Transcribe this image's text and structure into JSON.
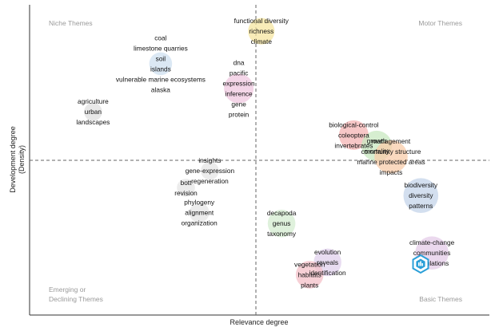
{
  "chart_data": {
    "type": "scatter",
    "title": "",
    "xlabel": "Relevance degree",
    "ylabel": "Development degree",
    "ylabel_sub": "(Density)",
    "quadrant_labels": {
      "top_left": [
        "Niche Themes"
      ],
      "top_right": [
        "Motor Themes"
      ],
      "bottom_left": [
        "Emerging or",
        "Declining Themes"
      ],
      "bottom_right": [
        "Basic Themes"
      ]
    },
    "axes": {
      "x_ticks": "none",
      "y_ticks": "none",
      "divider": "dashed at median of each axis"
    },
    "clusters": [
      {
        "terms": [
          "functional diversity",
          "richness",
          "climate"
        ],
        "x": 0.504,
        "y": 0.915,
        "size": 9,
        "color": "#f5e6a0"
      },
      {
        "terms": [
          "coal",
          "limestone quarries",
          "soil",
          "islands",
          "vulnerable marine ecosystems",
          "alaska"
        ],
        "x": 0.285,
        "y": 0.81,
        "size": 6,
        "color": "#cfe0f0"
      },
      {
        "terms": [
          "dna",
          "pacific",
          "expression",
          "inference",
          "gene",
          "protein"
        ],
        "x": 0.455,
        "y": 0.73,
        "size": 12,
        "color": "#f0c8e0"
      },
      {
        "terms": [
          "agriculture",
          "urban",
          "landscapes"
        ],
        "x": 0.138,
        "y": 0.655,
        "size": 3,
        "color": "#e0e0e0"
      },
      {
        "terms": [
          "biological-control",
          "coleoptera",
          "invertebrates"
        ],
        "x": 0.705,
        "y": 0.58,
        "size": 12,
        "color": "#f4b4b4"
      },
      {
        "terms": [
          "growth",
          "mortality"
        ],
        "x": 0.755,
        "y": 0.545,
        "size": 13,
        "color": "#c8e8c0"
      },
      {
        "terms": [
          "management",
          "community structure",
          "marine protected areas",
          "impacts"
        ],
        "x": 0.786,
        "y": 0.51,
        "size": 16,
        "color": "#f8ccaa"
      },
      {
        "terms": [
          "insights",
          "gene-expression",
          "regeneration"
        ],
        "x": 0.392,
        "y": 0.465,
        "size": 3,
        "color": "#e6e6e6"
      },
      {
        "terms": [
          "bott",
          "revision"
        ],
        "x": 0.34,
        "y": 0.41,
        "size": 3,
        "color": "#e6e6e6"
      },
      {
        "terms": [
          "phylogeny",
          "alignment",
          "organization"
        ],
        "x": 0.369,
        "y": 0.33,
        "size": 4,
        "color": "#e6e6e6"
      },
      {
        "terms": [
          "biodiversity",
          "diversity",
          "patterns"
        ],
        "x": 0.851,
        "y": 0.385,
        "size": 18,
        "color": "#c4d4ea"
      },
      {
        "terms": [
          "decapoda",
          "genus",
          "taxonomy"
        ],
        "x": 0.548,
        "y": 0.295,
        "size": 10,
        "color": "#d4ecd0"
      },
      {
        "terms": [
          "climate-change",
          "communities",
          "populations"
        ],
        "x": 0.875,
        "y": 0.2,
        "size": 16,
        "color": "#e4cce8"
      },
      {
        "terms": [
          "evolution",
          "reveals",
          "identification"
        ],
        "x": 0.648,
        "y": 0.17,
        "size": 10,
        "color": "#e0d0ec"
      },
      {
        "terms": [
          "vegetation",
          "habitats",
          "plants"
        ],
        "x": 0.609,
        "y": 0.13,
        "size": 10,
        "color": "#f4c0c8"
      }
    ]
  },
  "watermark_icon": "bibliometrix-hexagon-icon",
  "colors": {
    "divider": "#666666",
    "axis": "#333333",
    "watermark": "#2a9fd8"
  }
}
